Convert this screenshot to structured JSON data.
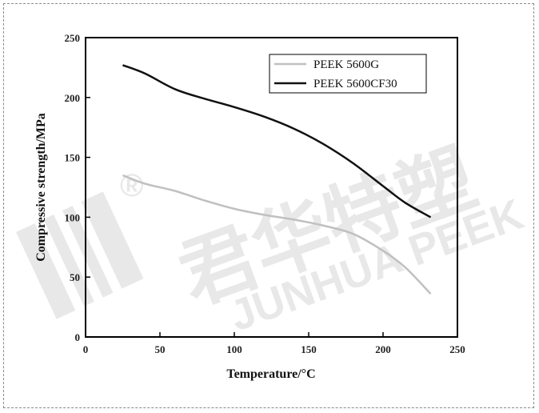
{
  "chart_data": {
    "type": "line",
    "xlabel": "Temperature/°C",
    "ylabel": "Compressive strength/MPa",
    "xlim": [
      0,
      250
    ],
    "ylim": [
      0,
      250
    ],
    "xticks": [
      0,
      50,
      100,
      150,
      200,
      250
    ],
    "yticks": [
      0,
      50,
      100,
      150,
      200,
      250
    ],
    "grid": false,
    "legend_position": "top-right",
    "series": [
      {
        "name": "PEEK 5600G",
        "color": "#c0c0c0",
        "x": [
          25,
          40,
          60,
          80,
          100,
          120,
          140,
          160,
          180,
          200,
          215,
          232
        ],
        "y": [
          135,
          128,
          122,
          114,
          107,
          102,
          98,
          93,
          86,
          72,
          58,
          36
        ]
      },
      {
        "name": "PEEK 5600CF30",
        "color": "#111111",
        "x": [
          25,
          40,
          60,
          80,
          100,
          120,
          140,
          160,
          180,
          200,
          215,
          232
        ],
        "y": [
          227,
          220,
          207,
          199,
          192,
          184,
          174,
          161,
          145,
          126,
          112,
          100
        ]
      }
    ]
  },
  "watermark": {
    "registered": "®",
    "cn_text": "君华特塑",
    "en_text": "JUNHUA PEEK"
  }
}
